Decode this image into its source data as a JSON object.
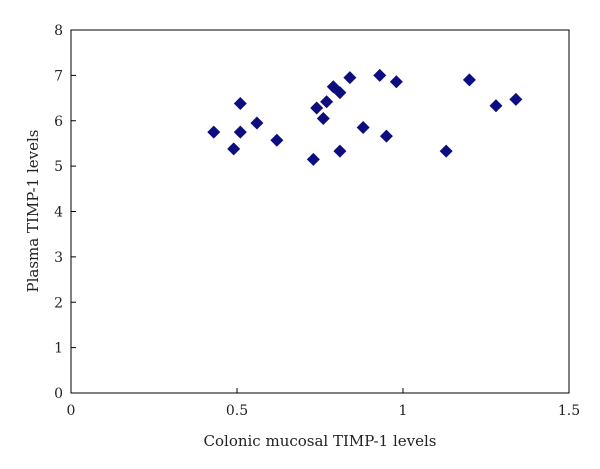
{
  "chart_data": {
    "type": "scatter",
    "xlabel": "Colonic mucosal TIMP-1 levels",
    "ylabel": "Plasma TIMP-1 levels",
    "xlim": [
      0,
      1.5
    ],
    "ylim": [
      0,
      8
    ],
    "x_ticks": [
      "0",
      "0.5",
      "1",
      "1.5"
    ],
    "y_ticks": [
      "0",
      "1",
      "2",
      "3",
      "4",
      "5",
      "6",
      "7",
      "8"
    ],
    "marker": "diamond",
    "marker_color": "#0d0d80",
    "grid": false,
    "points": [
      {
        "x": 0.43,
        "y": 5.75
      },
      {
        "x": 0.49,
        "y": 5.38
      },
      {
        "x": 0.51,
        "y": 5.75
      },
      {
        "x": 0.51,
        "y": 6.38
      },
      {
        "x": 0.56,
        "y": 5.95
      },
      {
        "x": 0.62,
        "y": 5.57
      },
      {
        "x": 0.73,
        "y": 5.15
      },
      {
        "x": 0.74,
        "y": 6.28
      },
      {
        "x": 0.76,
        "y": 6.05
      },
      {
        "x": 0.77,
        "y": 6.42
      },
      {
        "x": 0.79,
        "y": 6.75
      },
      {
        "x": 0.81,
        "y": 6.62
      },
      {
        "x": 0.81,
        "y": 5.33
      },
      {
        "x": 0.84,
        "y": 6.95
      },
      {
        "x": 0.88,
        "y": 5.85
      },
      {
        "x": 0.93,
        "y": 7.0
      },
      {
        "x": 0.95,
        "y": 5.66
      },
      {
        "x": 0.98,
        "y": 6.86
      },
      {
        "x": 1.13,
        "y": 5.33
      },
      {
        "x": 1.2,
        "y": 6.9
      },
      {
        "x": 1.28,
        "y": 6.33
      },
      {
        "x": 1.34,
        "y": 6.47
      }
    ]
  }
}
